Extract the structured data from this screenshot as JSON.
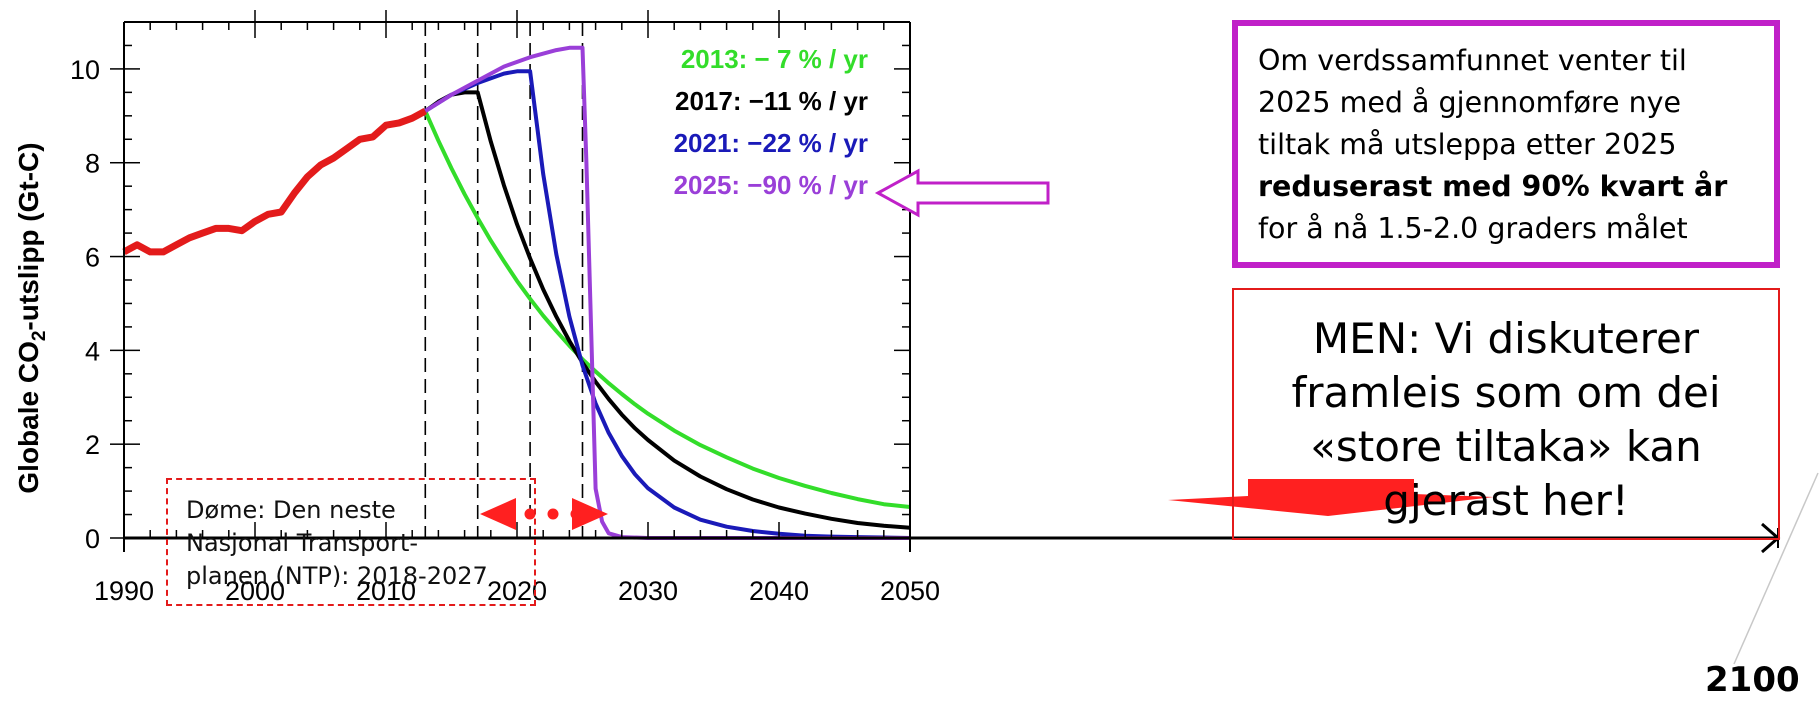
{
  "chart_data": {
    "type": "line",
    "ylabel_prefix": "Globale CO",
    "ylabel_sub": "2",
    "ylabel_suffix": "-utslipp (Gt-C)",
    "xlim": [
      1990,
      2050
    ],
    "ylim": [
      0,
      11
    ],
    "x_ticks": [
      1990,
      2000,
      2010,
      2020,
      2030,
      2040,
      2050
    ],
    "y_ticks": [
      0,
      2,
      4,
      6,
      8,
      10
    ],
    "extended_axis_label": "2100",
    "vertical_markers": [
      2013,
      2017,
      2021,
      2025
    ],
    "historical": {
      "color": "#e31b1b",
      "x": [
        1990,
        1991,
        1992,
        1993,
        1994,
        1995,
        1996,
        1997,
        1998,
        1999,
        2000,
        2001,
        2002,
        2003,
        2004,
        2005,
        2006,
        2007,
        2008,
        2009,
        2010,
        2011,
        2012,
        2013
      ],
      "y": [
        6.1,
        6.25,
        6.1,
        6.1,
        6.25,
        6.4,
        6.5,
        6.6,
        6.6,
        6.55,
        6.75,
        6.9,
        6.95,
        7.35,
        7.7,
        7.95,
        8.1,
        8.3,
        8.5,
        8.55,
        8.8,
        8.85,
        8.95,
        9.1
      ]
    },
    "series": [
      {
        "name": "2013: −  7 % / yr",
        "color": "#33dd2a",
        "x": [
          2013,
          2014,
          2015,
          2016,
          2017,
          2018,
          2019,
          2020,
          2021,
          2022,
          2023,
          2024,
          2025,
          2026,
          2027,
          2028,
          2029,
          2030,
          2032,
          2034,
          2036,
          2038,
          2040,
          2042,
          2044,
          2046,
          2048,
          2050
        ],
        "y": [
          9.1,
          8.47,
          7.88,
          7.33,
          6.82,
          6.34,
          5.9,
          5.48,
          5.1,
          4.74,
          4.41,
          4.1,
          3.81,
          3.55,
          3.3,
          3.07,
          2.85,
          2.65,
          2.29,
          1.98,
          1.72,
          1.48,
          1.28,
          1.11,
          0.96,
          0.83,
          0.72,
          0.66
        ]
      },
      {
        "name": "2017: −11 % / yr",
        "color": "#000000",
        "x": [
          2013,
          2014,
          2015,
          2016,
          2017,
          2018,
          2019,
          2020,
          2021,
          2022,
          2023,
          2024,
          2025,
          2026,
          2027,
          2028,
          2029,
          2030,
          2032,
          2034,
          2036,
          2038,
          2040,
          2042,
          2044,
          2046,
          2048,
          2050
        ],
        "y": [
          9.1,
          9.3,
          9.45,
          9.5,
          9.5,
          8.45,
          7.52,
          6.69,
          5.96,
          5.3,
          4.72,
          4.2,
          3.74,
          3.33,
          2.96,
          2.63,
          2.34,
          2.09,
          1.65,
          1.31,
          1.04,
          0.82,
          0.65,
          0.52,
          0.41,
          0.32,
          0.26,
          0.22
        ]
      },
      {
        "name": "2021: −22 % / yr",
        "color": "#1a1ab8",
        "x": [
          2013,
          2015,
          2017,
          2019,
          2020,
          2021,
          2022,
          2023,
          2024,
          2025,
          2026,
          2027,
          2028,
          2029,
          2030,
          2032,
          2034,
          2036,
          2038,
          2040,
          2042,
          2044,
          2046,
          2048,
          2050
        ],
        "y": [
          9.1,
          9.45,
          9.7,
          9.9,
          9.95,
          9.95,
          7.76,
          6.05,
          4.72,
          3.68,
          2.87,
          2.24,
          1.75,
          1.36,
          1.06,
          0.65,
          0.39,
          0.24,
          0.15,
          0.09,
          0.05,
          0.03,
          0.02,
          0.01,
          0.0
        ]
      },
      {
        "name": "2025: −90 % / yr",
        "color": "#9a3fd8",
        "x": [
          2013,
          2015,
          2017,
          2019,
          2021,
          2023,
          2024,
          2025,
          2025.3,
          2025.6,
          2026,
          2026.5,
          2027,
          2028,
          2030,
          2050
        ],
        "y": [
          9.1,
          9.45,
          9.75,
          10.05,
          10.25,
          10.4,
          10.45,
          10.45,
          8.0,
          5.0,
          1.05,
          0.35,
          0.1,
          0.02,
          0.0,
          0.0
        ]
      }
    ]
  },
  "annotations": {
    "callout_purple": {
      "line1": "Om verdssamfunnet venter til",
      "line2": "2025 med å gjennomføre nye",
      "line3": "tiltak må utsleppa etter 2025",
      "line4_bold": "reduserast med 90% kvart år",
      "line5": "for å nå 1.5-2.0 graders målet"
    },
    "callout_red": {
      "line1": "MEN: Vi diskuterer",
      "line2": "framleis som om dei",
      "line3": "«store tiltaka» kan",
      "line4": "gjerast her!"
    },
    "example_box": {
      "line1": "Døme: Den neste",
      "line2": "Nasjonal Transport-",
      "line3": "planen (NTP): 2018-2027"
    }
  },
  "colors": {
    "accent_purple": "#c020c8",
    "accent_red": "#e31b1b",
    "arrow_fill": "#ff2020"
  }
}
